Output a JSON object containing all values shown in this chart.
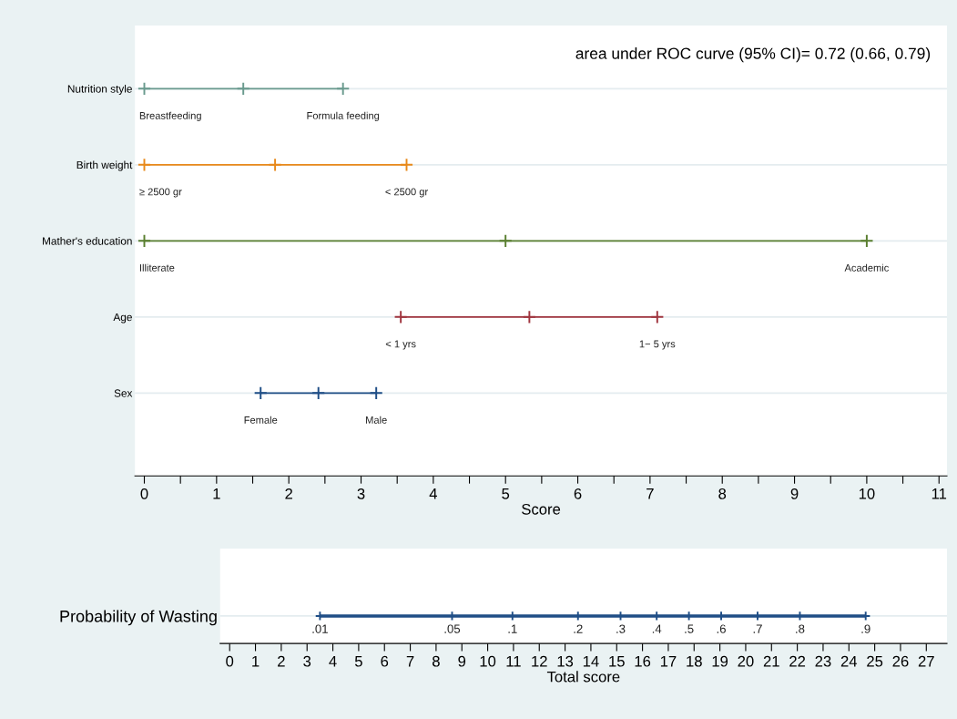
{
  "chart_data": [
    {
      "type": "bar",
      "orientation": "horizontal",
      "categories": [
        "Nutrition style",
        "Birth weight",
        "Mather's education",
        "Age",
        "Sex"
      ],
      "series": [
        {
          "base": [
            0,
            0,
            0,
            3.55,
            1.61
          ],
          "values": [
            2.75,
            3.63,
            10,
            3.55,
            1.6
          ],
          "colors": [
            "#6a9a8e",
            "#e8891a",
            "#5a7f30",
            "#a0353f",
            "#1f4e86"
          ]
        },
        {
          "type": "scatter",
          "marker": "cross",
          "x": [
            "Nutrition style",
            "Birth weight",
            "Mather's education",
            "Age",
            "Sex"
          ],
          "values": [
            0,
            0,
            0,
            3.55,
            1.61
          ],
          "colors": [
            "#6a9a8e",
            "#e8891a",
            "#5a7f30",
            "#a0353f",
            "#1f4e86"
          ]
        },
        {
          "type": "scatter",
          "marker": "cross",
          "x": [
            "Nutrition style",
            "Birth weight",
            "Mather's education",
            "Age",
            "Sex"
          ],
          "values": [
            1.37,
            1.81,
            5.0,
            5.33,
            2.41
          ],
          "colors": [
            "#6a9a8e",
            "#e8891a",
            "#5a7f30",
            "#a0353f",
            "#1f4e86"
          ]
        },
        {
          "type": "scatter",
          "marker": "cross",
          "x": [
            "Nutrition style",
            "Birth weight",
            "Mather's education",
            "Age",
            "Sex"
          ],
          "values": [
            2.75,
            3.63,
            10,
            7.1,
            3.21
          ],
          "colors": [
            "#6a9a8e",
            "#e8891a",
            "#5a7f30",
            "#a0353f",
            "#1f4e86"
          ]
        }
      ],
      "annotations": [
        "area under ROC curve (95% CI)= 0.72 (0.66, 0.79)",
        {
          "text": "Breastfeeding",
          "x": 0,
          "y": "Nutrition style"
        },
        {
          "text": "Formula feeding",
          "x": 2.75,
          "y": "Nutrition style"
        },
        {
          "text": "≥ 2500 gr",
          "x": 0,
          "y": "Birth weight"
        },
        {
          "text": "< 2500 gr",
          "x": 3.63,
          "y": "Birth weight"
        },
        {
          "text": "Illiterate",
          "x": 0,
          "y": "Mather's education"
        },
        {
          "text": "Academic",
          "x": 10,
          "y": "Mather's education"
        },
        {
          "text": "< 1 yrs",
          "x": 3.55,
          "y": "Age"
        },
        {
          "text": "1− 5 yrs",
          "x": 7.1,
          "y": "Age"
        },
        {
          "text": "Female",
          "x": 1.61,
          "y": "Sex"
        },
        {
          "text": "Male",
          "x": 3.21,
          "y": "Sex"
        }
      ],
      "xlabel": "Score",
      "xlim": [
        -0.13,
        11.11
      ],
      "xticks": [
        0,
        {
          "value": 0.5,
          "label": null
        },
        1,
        {
          "value": 1.5,
          "label": null
        },
        2,
        {
          "value": 2.5,
          "label": null
        },
        3,
        {
          "value": 3.5,
          "label": null
        },
        4,
        {
          "value": 4.5,
          "label": null
        },
        5,
        {
          "value": 5.5,
          "label": null
        },
        6,
        {
          "value": 6.5,
          "label": null
        },
        7,
        {
          "value": 7.5,
          "label": null
        },
        8,
        {
          "value": 8.5,
          "label": null
        },
        9,
        {
          "value": 9.5,
          "label": null
        },
        10,
        {
          "value": 10.5,
          "label": null
        },
        11
      ],
      "grid": "y"
    },
    {
      "type": "bar",
      "orientation": "horizontal",
      "categories": [
        "Probability of Wasting"
      ],
      "series": [
        {
          "base": [
            3.5
          ],
          "values": [
            21.15
          ],
          "colors": [
            "#1f4e86"
          ]
        },
        {
          "type": "scatter",
          "marker": "cross",
          "color": "#1f4e86",
          "x": [
            "Probability of Wasting",
            "Probability of Wasting",
            "Probability of Wasting",
            "Probability of Wasting",
            "Probability of Wasting",
            "Probability of Wasting",
            "Probability of Wasting",
            "Probability of Wasting",
            "Probability of Wasting",
            "Probability of Wasting",
            "Probability of Wasting"
          ],
          "values": [
            3.5,
            8.62,
            10.96,
            13.5,
            15.15,
            16.55,
            17.8,
            19.05,
            20.46,
            22.1,
            24.65
          ]
        }
      ],
      "annotations": [
        {
          "text": ".01",
          "x": 3.5,
          "y": "Probability of Wasting"
        },
        {
          "text": ".05",
          "x": 8.62,
          "y": "Probability of Wasting"
        },
        {
          "text": ".1",
          "x": 10.96,
          "y": "Probability of Wasting"
        },
        {
          "text": ".2",
          "x": 13.5,
          "y": "Probability of Wasting"
        },
        {
          "text": ".3",
          "x": 15.15,
          "y": "Probability of Wasting"
        },
        {
          "text": ".4",
          "x": 16.55,
          "y": "Probability of Wasting"
        },
        {
          "text": ".5",
          "x": 17.8,
          "y": "Probability of Wasting"
        },
        {
          "text": ".6",
          "x": 19.05,
          "y": "Probability of Wasting"
        },
        {
          "text": ".7",
          "x": 20.46,
          "y": "Probability of Wasting"
        },
        {
          "text": ".8",
          "x": 22.1,
          "y": "Probability of Wasting"
        },
        {
          "text": ".9",
          "x": 24.65,
          "y": "Probability of Wasting"
        }
      ],
      "xlabel": "Total score",
      "xlim": [
        -0.37,
        27.8
      ],
      "xticks": [
        0,
        1,
        2,
        3,
        4,
        5,
        6,
        7,
        8,
        9,
        10,
        11,
        12,
        13,
        14,
        15,
        16,
        17,
        18,
        19,
        20,
        21,
        22,
        23,
        24,
        25,
        26,
        27
      ],
      "grid": "y"
    }
  ]
}
